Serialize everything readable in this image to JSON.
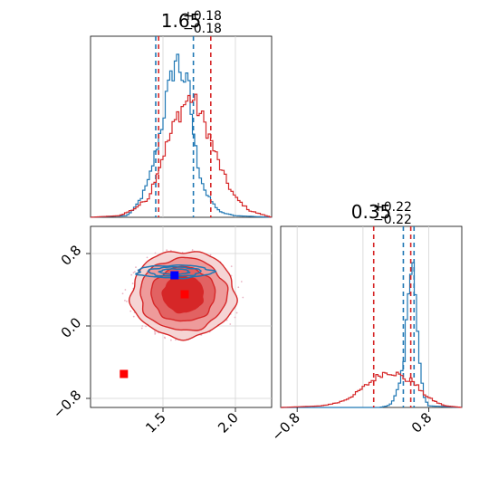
{
  "chart_data": [
    {
      "type": "histogram",
      "panel": "top-left",
      "title": {
        "main": "1.65",
        "sup": "+0.18",
        "sub": "−0.18"
      },
      "xlim": [
        1.0,
        2.25
      ],
      "grid": true,
      "series": [
        {
          "name": "blue",
          "color": "#1f77b4",
          "x": [
            1.0,
            1.25,
            1.3,
            1.35,
            1.4,
            1.45,
            1.5,
            1.52,
            1.55,
            1.58,
            1.6,
            1.62,
            1.65,
            1.68,
            1.7,
            1.72,
            1.75,
            1.8,
            1.85,
            1.9,
            2.0,
            2.25
          ],
          "density": [
            0,
            0.01,
            0.05,
            0.12,
            0.22,
            0.4,
            0.6,
            0.72,
            0.82,
            0.95,
            1.0,
            0.9,
            0.85,
            0.78,
            0.6,
            0.45,
            0.28,
            0.14,
            0.08,
            0.03,
            0.01,
            0
          ],
          "quantiles": [
            1.45,
            1.71
          ]
        },
        {
          "name": "red",
          "color": "#d62728",
          "x": [
            1.0,
            1.2,
            1.3,
            1.4,
            1.45,
            1.5,
            1.55,
            1.6,
            1.65,
            1.7,
            1.75,
            1.8,
            1.85,
            1.9,
            1.95,
            2.0,
            2.1,
            2.25
          ],
          "density": [
            0,
            0.01,
            0.05,
            0.12,
            0.25,
            0.38,
            0.5,
            0.62,
            0.7,
            0.74,
            0.65,
            0.55,
            0.42,
            0.3,
            0.2,
            0.12,
            0.04,
            0
          ],
          "quantiles": [
            1.47,
            1.83
          ]
        }
      ]
    },
    {
      "type": "scatter",
      "panel": "bottom-left",
      "xlim": [
        1.0,
        2.25
      ],
      "ylim": [
        -0.9,
        1.1
      ],
      "xticks": [
        "1.5",
        "2.0"
      ],
      "yticks": [
        "0.8",
        "0.0",
        "−0.8"
      ],
      "xtick_values": [
        1.5,
        2.0
      ],
      "ytick_values": [
        0.8,
        0.0,
        -0.8
      ],
      "grid": true,
      "red_contours": {
        "color": "#d62728",
        "center": [
          1.64,
          0.35
        ],
        "levels": [
          {
            "sx": 0.36,
            "sy": 0.48,
            "fill": "#f5d4d4"
          },
          {
            "sx": 0.3,
            "sy": 0.4,
            "fill": "#ee9b9b"
          },
          {
            "sx": 0.22,
            "sy": 0.3,
            "fill": "#e26262"
          },
          {
            "sx": 0.14,
            "sy": 0.2,
            "fill": "#d62728"
          }
        ]
      },
      "blue_contours": {
        "color": "#1f77b4",
        "center": [
          1.58,
          0.6
        ],
        "levels": [
          {
            "sx": 0.26,
            "sy": 0.07
          },
          {
            "sx": 0.18,
            "sy": 0.05
          },
          {
            "sx": 0.1,
            "sy": 0.03
          }
        ]
      },
      "markers": [
        {
          "name": "blue-marker",
          "x": 1.58,
          "y": 0.56,
          "color": "#0000ff"
        },
        {
          "name": "red-marker",
          "x": 1.65,
          "y": 0.35,
          "color": "#ff0000"
        },
        {
          "name": "red-marker-low",
          "x": 1.23,
          "y": -0.53,
          "color": "#ff0000"
        }
      ]
    },
    {
      "type": "histogram",
      "panel": "bottom-right",
      "title": {
        "main": "0.35",
        "sup": "+0.22",
        "sub": "−0.22"
      },
      "xlim": [
        -1.0,
        1.2
      ],
      "xticks": [
        "−0.8",
        "0.8"
      ],
      "xtick_values": [
        -0.8,
        0.8
      ],
      "grid": true,
      "series": [
        {
          "name": "blue",
          "color": "#1f77b4",
          "x": [
            -1.0,
            0.2,
            0.3,
            0.35,
            0.4,
            0.45,
            0.5,
            0.52,
            0.55,
            0.58,
            0.6,
            0.62,
            0.65,
            0.7,
            0.75,
            0.8,
            1.2
          ],
          "density": [
            0,
            0,
            0.01,
            0.03,
            0.08,
            0.15,
            0.28,
            0.45,
            0.7,
            0.9,
            1.0,
            0.85,
            0.55,
            0.2,
            0.05,
            0.01,
            0
          ],
          "quantiles": [
            0.49,
            0.62
          ]
        },
        {
          "name": "red",
          "color": "#d62728",
          "x": [
            -1.0,
            -0.5,
            -0.3,
            -0.2,
            -0.1,
            0.0,
            0.1,
            0.2,
            0.3,
            0.4,
            0.5,
            0.55,
            0.6,
            0.65,
            0.7,
            0.8,
            0.9,
            1.0,
            1.2
          ],
          "density": [
            0,
            0.01,
            0.03,
            0.05,
            0.08,
            0.12,
            0.16,
            0.2,
            0.22,
            0.21,
            0.18,
            0.16,
            0.17,
            0.14,
            0.1,
            0.06,
            0.03,
            0.01,
            0
          ],
          "quantiles": [
            0.13,
            0.58
          ]
        }
      ]
    }
  ]
}
